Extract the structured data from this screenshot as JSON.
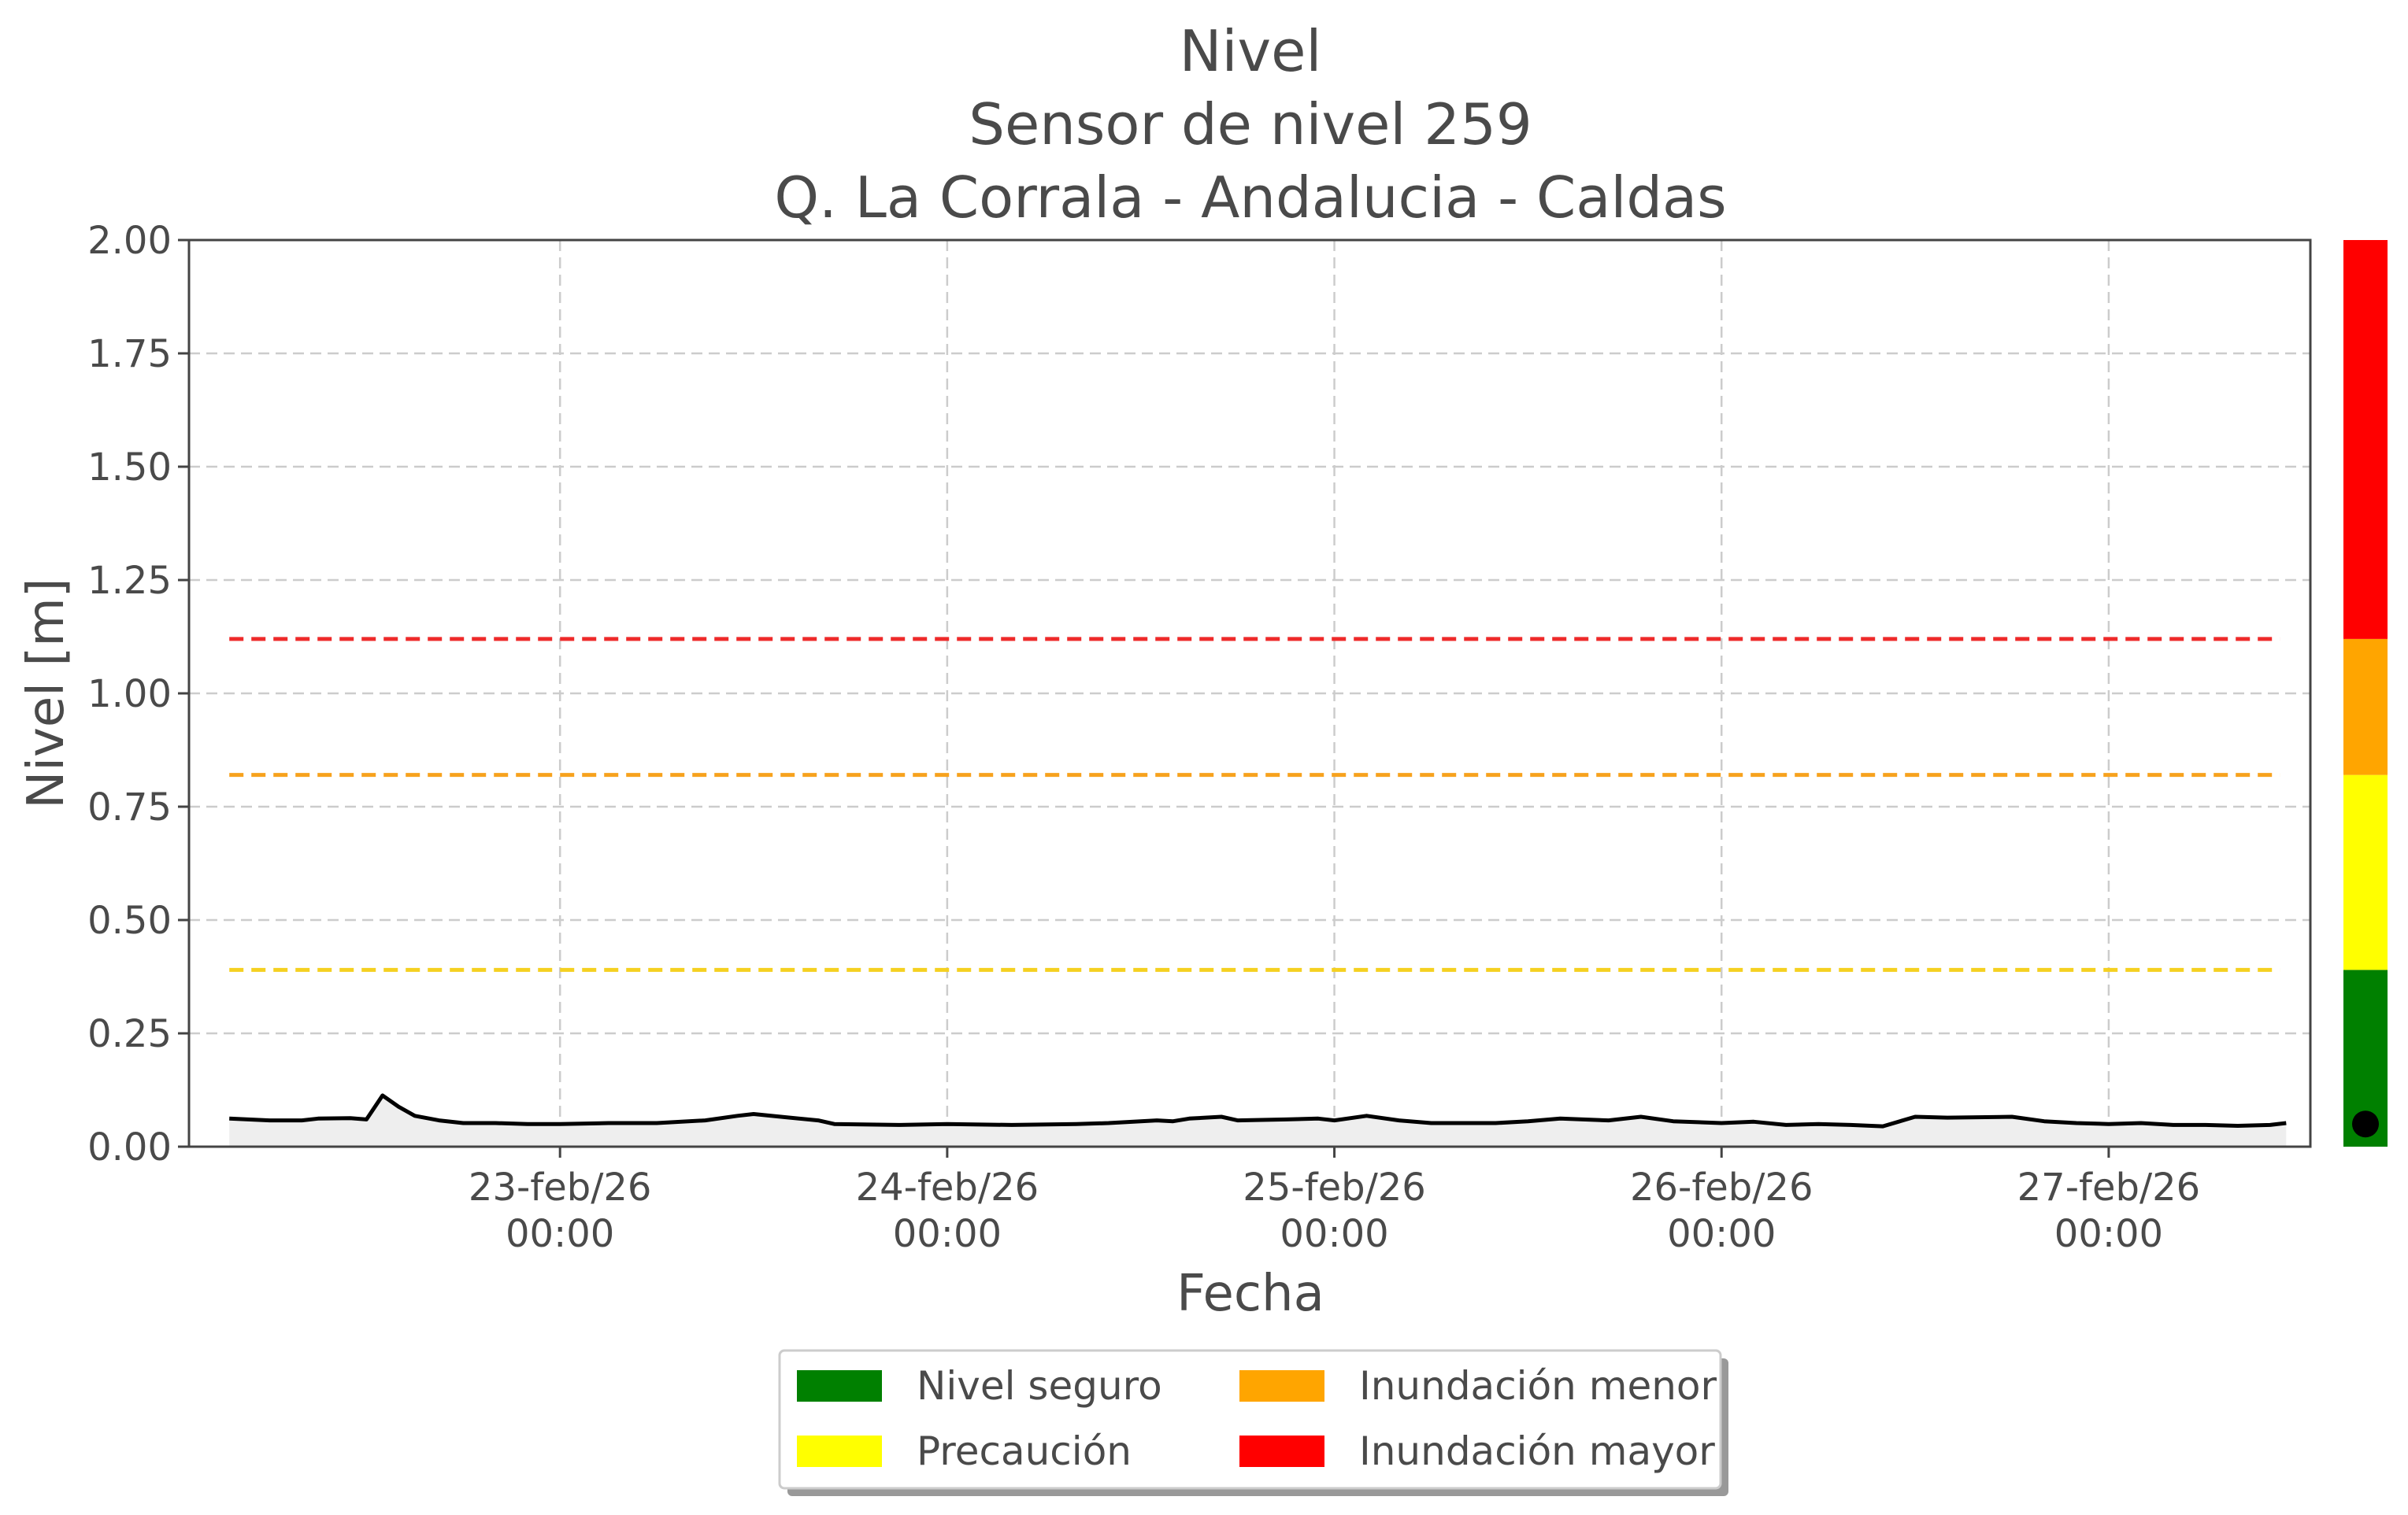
{
  "chart_data": {
    "type": "line",
    "title_lines": [
      "Nivel",
      "Sensor de nivel 259",
      "Q. La Corrala - Andalucia - Caldas"
    ],
    "xlabel": "Fecha",
    "ylabel": "Nivel [m]",
    "xlim": [
      "2026-02-22 01:00",
      "2026-02-27 12:30"
    ],
    "ylim": [
      0,
      2.0
    ],
    "yticks": [
      0.0,
      0.25,
      0.5,
      0.75,
      1.0,
      1.25,
      1.5,
      1.75,
      2.0
    ],
    "ytick_labels": [
      "0.00",
      "0.25",
      "0.50",
      "0.75",
      "1.00",
      "1.25",
      "1.50",
      "1.75",
      "2.00"
    ],
    "xticks": [
      {
        "x": "2026-02-23 00:00",
        "date": "23-feb/26",
        "time": "00:00"
      },
      {
        "x": "2026-02-24 00:00",
        "date": "24-feb/26",
        "time": "00:00"
      },
      {
        "x": "2026-02-25 00:00",
        "date": "25-feb/26",
        "time": "00:00"
      },
      {
        "x": "2026-02-26 00:00",
        "date": "26-feb/26",
        "time": "00:00"
      },
      {
        "x": "2026-02-27 00:00",
        "date": "27-feb/26",
        "time": "00:00"
      }
    ],
    "grid": true,
    "series": [
      {
        "color": "#000000",
        "fill": "#eeeeee",
        "points": [
          [
            "2026-02-22 03:30",
            0.062
          ],
          [
            "2026-02-22 06:00",
            0.058
          ],
          [
            "2026-02-22 08:00",
            0.058
          ],
          [
            "2026-02-22 09:00",
            0.062
          ],
          [
            "2026-02-22 11:00",
            0.063
          ],
          [
            "2026-02-22 12:00",
            0.06
          ],
          [
            "2026-02-22 13:00",
            0.113
          ],
          [
            "2026-02-22 14:00",
            0.088
          ],
          [
            "2026-02-22 15:00",
            0.068
          ],
          [
            "2026-02-22 16:30",
            0.058
          ],
          [
            "2026-02-22 18:00",
            0.052
          ],
          [
            "2026-02-22 20:00",
            0.052
          ],
          [
            "2026-02-22 22:00",
            0.05
          ],
          [
            "2026-02-23 00:00",
            0.05
          ],
          [
            "2026-02-23 03:00",
            0.052
          ],
          [
            "2026-02-23 06:00",
            0.052
          ],
          [
            "2026-02-23 09:00",
            0.058
          ],
          [
            "2026-02-23 11:00",
            0.068
          ],
          [
            "2026-02-23 12:00",
            0.072
          ],
          [
            "2026-02-23 14:00",
            0.065
          ],
          [
            "2026-02-23 16:00",
            0.058
          ],
          [
            "2026-02-23 17:00",
            0.05
          ],
          [
            "2026-02-23 21:00",
            0.048
          ],
          [
            "2026-02-24 00:00",
            0.05
          ],
          [
            "2026-02-24 04:00",
            0.048
          ],
          [
            "2026-02-24 08:00",
            0.05
          ],
          [
            "2026-02-24 10:00",
            0.052
          ],
          [
            "2026-02-24 13:00",
            0.058
          ],
          [
            "2026-02-24 14:00",
            0.056
          ],
          [
            "2026-02-24 15:00",
            0.062
          ],
          [
            "2026-02-24 17:00",
            0.066
          ],
          [
            "2026-02-24 18:00",
            0.058
          ],
          [
            "2026-02-24 21:00",
            0.06
          ],
          [
            "2026-02-24 23:00",
            0.062
          ],
          [
            "2026-02-25 00:00",
            0.058
          ],
          [
            "2026-02-25 02:00",
            0.068
          ],
          [
            "2026-02-25 04:00",
            0.058
          ],
          [
            "2026-02-25 06:00",
            0.052
          ],
          [
            "2026-02-25 10:00",
            0.052
          ],
          [
            "2026-02-25 12:00",
            0.056
          ],
          [
            "2026-02-25 14:00",
            0.062
          ],
          [
            "2026-02-25 17:00",
            0.058
          ],
          [
            "2026-02-25 19:00",
            0.066
          ],
          [
            "2026-02-25 21:00",
            0.056
          ],
          [
            "2026-02-26 00:00",
            0.052
          ],
          [
            "2026-02-26 02:00",
            0.055
          ],
          [
            "2026-02-26 04:00",
            0.048
          ],
          [
            "2026-02-26 06:00",
            0.05
          ],
          [
            "2026-02-26 08:00",
            0.048
          ],
          [
            "2026-02-26 10:00",
            0.045
          ],
          [
            "2026-02-26 12:00",
            0.066
          ],
          [
            "2026-02-26 14:00",
            0.064
          ],
          [
            "2026-02-26 18:00",
            0.066
          ],
          [
            "2026-02-26 20:00",
            0.056
          ],
          [
            "2026-02-26 22:00",
            0.052
          ],
          [
            "2026-02-27 00:00",
            0.05
          ],
          [
            "2026-02-27 02:00",
            0.052
          ],
          [
            "2026-02-27 04:00",
            0.048
          ],
          [
            "2026-02-27 06:00",
            0.048
          ],
          [
            "2026-02-27 08:00",
            0.046
          ],
          [
            "2026-02-27 10:00",
            0.048
          ],
          [
            "2026-02-27 11:00",
            0.052
          ]
        ]
      }
    ],
    "thresholds": [
      {
        "level": 0.39,
        "color": "#f5d020"
      },
      {
        "level": 0.82,
        "color": "#f7a21e"
      },
      {
        "level": 1.12,
        "color": "#ee2a2a"
      }
    ],
    "status_bar": {
      "segments": [
        {
          "from": 0.0,
          "to": 0.39,
          "color": "#008000"
        },
        {
          "from": 0.39,
          "to": 0.82,
          "color": "#ffff00"
        },
        {
          "from": 0.82,
          "to": 1.12,
          "color": "#ffa500"
        },
        {
          "from": 1.12,
          "to": 2.0,
          "color": "#ff0000"
        }
      ],
      "current_level": 0.05
    },
    "legend": {
      "placement": "bottom-center",
      "entries": [
        {
          "label": "Nivel seguro",
          "color": "#008000"
        },
        {
          "label": "Precaución",
          "color": "#ffff00"
        },
        {
          "label": "Inundación menor",
          "color": "#ffa500"
        },
        {
          "label": "Inundación mayor",
          "color": "#ff0000"
        }
      ]
    }
  }
}
